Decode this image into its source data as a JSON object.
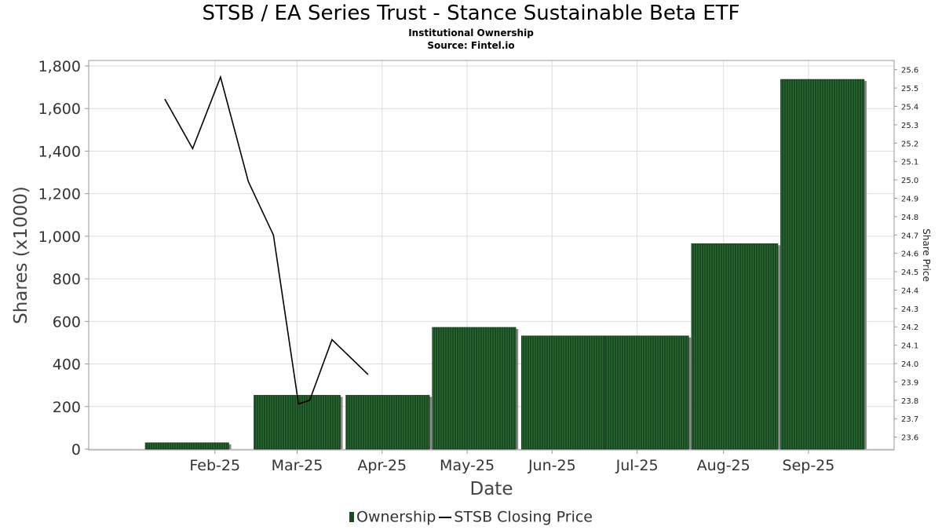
{
  "title": "STSB / EA Series Trust - Stance Sustainable Beta ETF",
  "subtitle": "Institutional Ownership",
  "source": "Source: Fintel.io",
  "legend": {
    "ownership_label": "Ownership",
    "price_label": "STSB Closing Price"
  },
  "colors": {
    "bar_fill": "#1a4a22",
    "bar_shadow": "#888888",
    "line": "#000000",
    "grid": "#dddddd"
  },
  "chart_data": {
    "type": "bar",
    "xlabel": "Date",
    "ylabel": "Shares (x1000)",
    "y2label": "Share Price",
    "x_ticks": [
      "Feb-25",
      "Mar-25",
      "Apr-25",
      "May-25",
      "Jun-25",
      "Jul-25",
      "Aug-25",
      "Sep-25"
    ],
    "y_ticks": [
      "0",
      "200",
      "400",
      "600",
      "800",
      "1,000",
      "1,200",
      "1,400",
      "1,600",
      "1,800"
    ],
    "y2_ticks": [
      "23.6",
      "23.7",
      "23.8",
      "23.9",
      "24.0",
      "24.1",
      "24.2",
      "24.3",
      "24.4",
      "24.5",
      "24.6",
      "24.7",
      "24.8",
      "24.9",
      "25.0",
      "25.1",
      "25.2",
      "25.3",
      "25.4",
      "25.5",
      "25.6"
    ],
    "ylim": [
      0,
      1830
    ],
    "y2lim": [
      23.53,
      25.65
    ],
    "grid": true,
    "legend_position": "bottom",
    "series": [
      {
        "name": "Ownership",
        "type": "bar",
        "bars": [
          {
            "start": "2025-01-21",
            "end": "2025-02-20",
            "value": 30
          },
          {
            "start": "2025-03-01",
            "end": "2025-04-01",
            "value": 253
          },
          {
            "start": "2025-04-03",
            "end": "2025-05-03",
            "value": 253
          },
          {
            "start": "2025-05-04",
            "end": "2025-06-03",
            "value": 572
          },
          {
            "start": "2025-06-05",
            "end": "2025-07-05",
            "value": 532
          },
          {
            "start": "2025-07-05",
            "end": "2025-08-04",
            "value": 532
          },
          {
            "start": "2025-08-05",
            "end": "2025-09-05",
            "value": 965
          },
          {
            "start": "2025-09-06",
            "end": "2025-10-06",
            "value": 1737
          }
        ]
      },
      {
        "name": "STSB Closing Price",
        "type": "line",
        "points": [
          {
            "date": "2025-01-28",
            "price": 25.44
          },
          {
            "date": "2025-02-07",
            "price": 25.17
          },
          {
            "date": "2025-02-17",
            "price": 25.56
          },
          {
            "date": "2025-02-27",
            "price": 24.99
          },
          {
            "date": "2025-03-08",
            "price": 24.7
          },
          {
            "date": "2025-03-17",
            "price": 23.78
          },
          {
            "date": "2025-03-21",
            "price": 23.8
          },
          {
            "date": "2025-03-29",
            "price": 24.13
          },
          {
            "date": "2025-04-11",
            "price": 23.94
          }
        ]
      }
    ]
  }
}
